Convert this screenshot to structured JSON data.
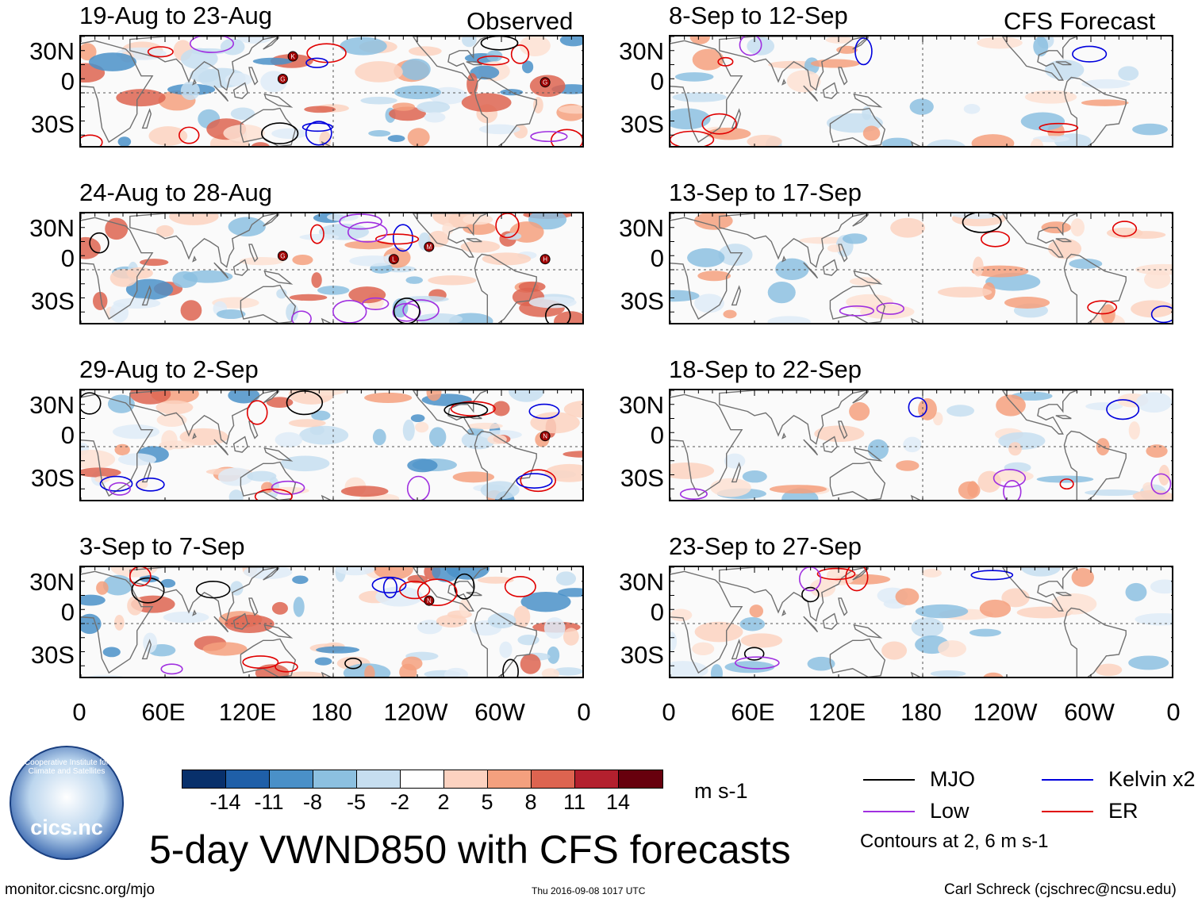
{
  "main_title": "5-day VWND850 with CFS forecasts",
  "header_left": "Observed",
  "header_right": "CFS Forecast",
  "panels_left": [
    {
      "title": "19-Aug to 23-Aug"
    },
    {
      "title": "24-Aug to 28-Aug"
    },
    {
      "title": "29-Aug to 2-Sep"
    },
    {
      "title": "3-Sep to 7-Sep"
    }
  ],
  "panels_right": [
    {
      "title": "8-Sep to 12-Sep"
    },
    {
      "title": "13-Sep to 17-Sep"
    },
    {
      "title": "18-Sep to 22-Sep"
    },
    {
      "title": "23-Sep to 27-Sep"
    }
  ],
  "y_ticks": [
    "30N",
    "0",
    "30S"
  ],
  "x_ticks": [
    "0",
    "60E",
    "120E",
    "180",
    "120W",
    "60W",
    "0"
  ],
  "colorbar": {
    "labels": [
      "-14",
      "-11",
      "-8",
      "-5",
      "-2",
      "2",
      "5",
      "8",
      "11",
      "14"
    ],
    "colors": [
      "#08306b",
      "#1f5fa8",
      "#4a90c8",
      "#8cc0e0",
      "#c6def0",
      "#ffffff",
      "#fcd2c0",
      "#f4a07e",
      "#dd6450",
      "#b3202e",
      "#67000d"
    ],
    "units": "m s-1"
  },
  "legend": {
    "items": [
      {
        "label": "MJO",
        "color": "#000000"
      },
      {
        "label": "Kelvin x2",
        "color": "#0000dd"
      },
      {
        "label": "Low",
        "color": "#a030e0"
      },
      {
        "label": "ER",
        "color": "#e00000"
      }
    ],
    "note": "Contours at 2, 6 m s-1"
  },
  "logo": {
    "name": "cics.nc",
    "arc_text": "Cooperative Institute for Climate and Satellites"
  },
  "footer": {
    "url": "monitor.cicsnc.org/mjo",
    "timestamp": "Thu 2016-09-08 1017 UTC",
    "credit": "Carl Schreck (cjschrec@ncsu.edu)"
  },
  "storm_markers": [
    {
      "panel": 0,
      "letters": [
        "K",
        "G",
        "G"
      ]
    },
    {
      "panel": 1,
      "letters": [
        "G",
        "H",
        "M",
        "L"
      ]
    },
    {
      "panel": 2,
      "letters": [
        "N"
      ]
    },
    {
      "panel": 3,
      "letters": [
        "N"
      ]
    }
  ]
}
